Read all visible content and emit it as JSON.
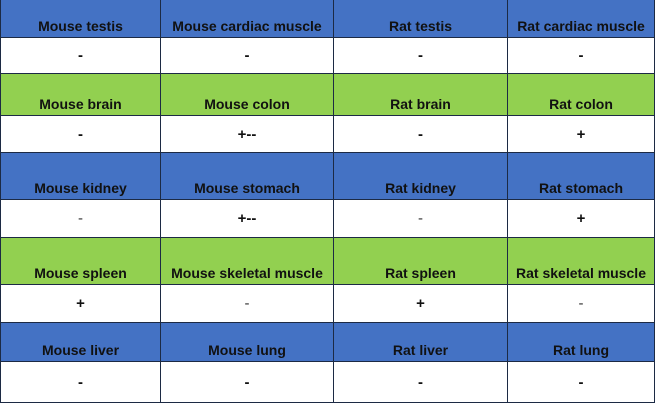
{
  "rows": [
    {
      "type": "header",
      "color": "#4472c4",
      "cells": [
        "Mouse testis",
        "Mouse cardiac muscle",
        "Rat testis",
        "Rat cardiac muscle"
      ]
    },
    {
      "type": "values",
      "cells": [
        "-",
        "-",
        "-",
        "-"
      ]
    },
    {
      "type": "header",
      "color": "#92d050",
      "cells": [
        "Mouse brain",
        "Mouse colon",
        "Rat brain",
        "Rat colon"
      ]
    },
    {
      "type": "values",
      "cells": [
        "-",
        "+--",
        "-",
        "+"
      ]
    },
    {
      "type": "header",
      "color": "#4472c4",
      "cells": [
        "Mouse kidney",
        "Mouse stomach",
        "Rat kidney",
        "Rat stomach"
      ]
    },
    {
      "type": "values",
      "cells": [
        "-",
        "+--",
        "-",
        "+"
      ]
    },
    {
      "type": "header",
      "color": "#92d050",
      "cells": [
        "Mouse spleen",
        "Mouse skeletal muscle",
        "Rat spleen",
        "Rat skeletal muscle"
      ]
    },
    {
      "type": "values",
      "cells": [
        "+",
        "-",
        "+",
        "-"
      ]
    },
    {
      "type": "header",
      "color": "#4472c4",
      "cells": [
        "Mouse liver",
        "Mouse lung",
        "Rat liver",
        "Rat lung"
      ]
    },
    {
      "type": "values",
      "cells": [
        "-",
        "-",
        "-",
        "-"
      ]
    }
  ]
}
